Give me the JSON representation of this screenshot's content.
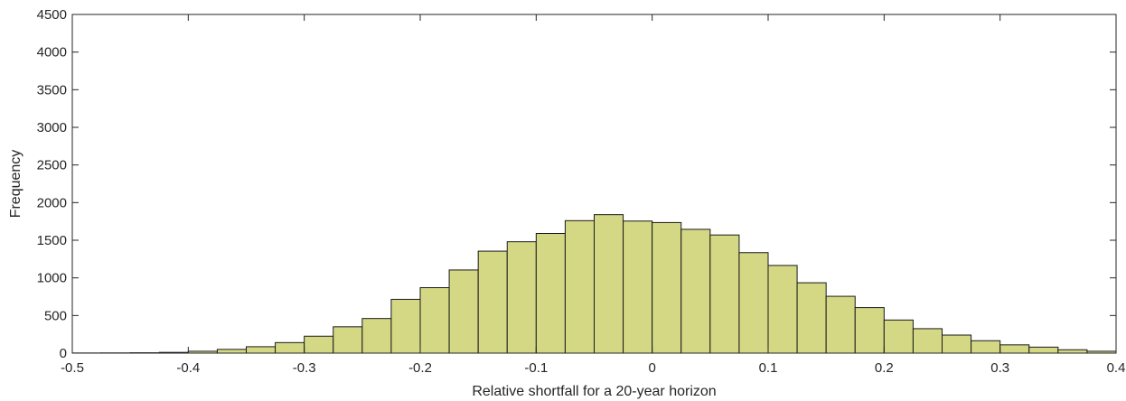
{
  "chart_data": {
    "type": "bar",
    "title": "",
    "xlabel": "Relative shortfall for a 20-year horizon",
    "ylabel": "Frequency",
    "xlim": [
      -0.5,
      0.4
    ],
    "ylim": [
      0,
      4500
    ],
    "grid": false,
    "bar_color": "#d4d884",
    "edge_color": "#1a1a1a",
    "xticks": [
      -0.5,
      -0.4,
      -0.3,
      -0.2,
      -0.1,
      0,
      0.1,
      0.2,
      0.3,
      0.4
    ],
    "xtick_labels": [
      "-0.5",
      "-0.4",
      "-0.3",
      "-0.2",
      "-0.1",
      "0",
      "0.1",
      "0.2",
      "0.3",
      "0.4"
    ],
    "yticks": [
      0,
      500,
      1000,
      1500,
      2000,
      2500,
      3000,
      3500,
      4000,
      4500
    ],
    "ytick_labels": [
      "0",
      "500",
      "1000",
      "1500",
      "2000",
      "2500",
      "3000",
      "3500",
      "4000",
      "4500"
    ],
    "bin_edges": [
      -0.5,
      -0.475,
      -0.45,
      -0.425,
      -0.4,
      -0.375,
      -0.35,
      -0.325,
      -0.3,
      -0.275,
      -0.25,
      -0.225,
      -0.2,
      -0.175,
      -0.15,
      -0.125,
      -0.1,
      -0.075,
      -0.05,
      -0.025,
      0,
      0.025,
      0.05,
      0.075,
      0.1,
      0.125,
      0.15,
      0.175,
      0.2,
      0.225,
      0.25,
      0.275,
      0.3,
      0.325,
      0.35,
      0.375,
      0.4
    ],
    "values": [
      2,
      3,
      5,
      10,
      25,
      50,
      85,
      140,
      225,
      350,
      460,
      715,
      870,
      1105,
      1355,
      1480,
      1590,
      1760,
      1840,
      1755,
      1735,
      1645,
      1570,
      1335,
      1165,
      935,
      755,
      605,
      440,
      325,
      240,
      165,
      110,
      80,
      45,
      25
    ]
  }
}
